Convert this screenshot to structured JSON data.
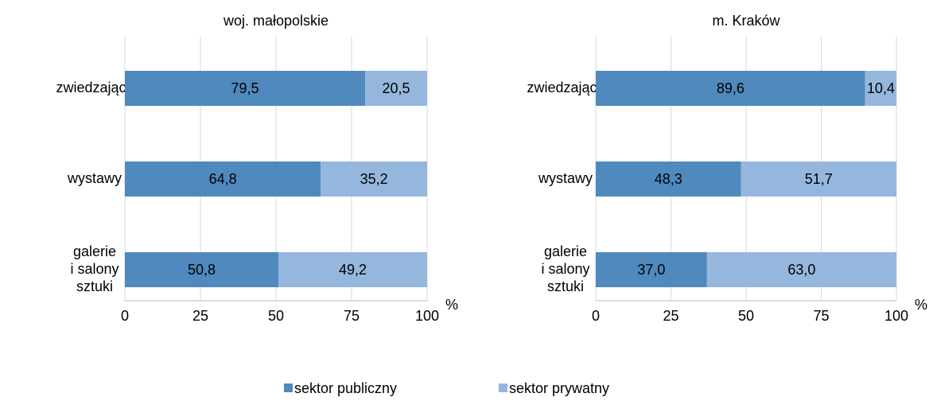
{
  "chart_data": [
    {
      "type": "stacked_barh",
      "title": "woj. małopolskie",
      "xlabel": "%",
      "categories": [
        "zwiedzający",
        "wystawy",
        "galerie\ni salony\nsztuki"
      ],
      "series": [
        {
          "name": "sektor publiczny",
          "color": "#4f89bd",
          "values": [
            79.5,
            64.8,
            50.8
          ],
          "value_labels": [
            "79,5",
            "64,8",
            "50,8"
          ]
        },
        {
          "name": "sektor prywatny",
          "color": "#95b7de",
          "values": [
            20.5,
            35.2,
            49.2
          ],
          "value_labels": [
            "20,5",
            "35,2",
            "49,2"
          ]
        }
      ],
      "xlim": [
        0,
        100
      ],
      "xticks": [
        0,
        25,
        50,
        75,
        100
      ],
      "grid": true
    },
    {
      "type": "stacked_barh",
      "title": "m. Kraków",
      "xlabel": "%",
      "categories": [
        "zwiedzający",
        "wystawy",
        "galerie\ni salony\nsztuki"
      ],
      "series": [
        {
          "color": "#4f89bd",
          "values": [
            89.6,
            48.3,
            37.0
          ],
          "value_labels": [
            "89,6",
            "48,3",
            "37,0"
          ]
        },
        {
          "color": "#95b7de",
          "values": [
            10.4,
            51.7,
            63.0
          ],
          "value_labels": [
            "10,4",
            "51,7",
            "63,0"
          ]
        }
      ],
      "xlim": [
        0,
        100
      ],
      "xticks": [
        0,
        25,
        50,
        75,
        100
      ],
      "grid": true
    }
  ]
}
